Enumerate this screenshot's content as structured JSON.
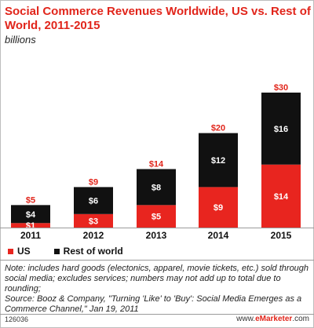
{
  "colors": {
    "us": "#e8251f",
    "row": "#111111",
    "total": "#e1251b",
    "accent": "#e1251b"
  },
  "header": {
    "title": "Social Commerce Revenues Worldwide, US vs. Rest of World, 2011-2015",
    "subtitle": "billions"
  },
  "legend": {
    "us": "US",
    "row": "Rest of world"
  },
  "notes": {
    "note": "Note: includes hard goods (electonics, apparel, movie tickets, etc.) sold through social media; excludes services; numbers may not add up to total due to rounding;",
    "source": "Source: Booz & Company, \"Turning 'Like' to 'Buy': Social Media Emerges as a Commerce Channel,\" Jan 19, 2011"
  },
  "footer": {
    "id": "126036",
    "brand_prefix": "www.",
    "brand_name": "eMarketer",
    "brand_suffix": ".com"
  },
  "chart_data": {
    "type": "bar",
    "stacked": true,
    "categories": [
      "2011",
      "2012",
      "2013",
      "2014",
      "2015"
    ],
    "series": [
      {
        "name": "US",
        "values": [
          1,
          3,
          5,
          9,
          14
        ],
        "labels": [
          "$1",
          "$3",
          "$5",
          "$9",
          "$14"
        ]
      },
      {
        "name": "Rest of world",
        "values": [
          4,
          6,
          8,
          12,
          16
        ],
        "labels": [
          "$4",
          "$6",
          "$8",
          "$12",
          "$16"
        ]
      }
    ],
    "totals": [
      5,
      9,
      14,
      20,
      30
    ],
    "total_labels": [
      "$5",
      "$9",
      "$14",
      "$20",
      "$30"
    ],
    "title": "Social Commerce Revenues Worldwide, US vs. Rest of World, 2011-2015",
    "ylabel": "billions",
    "ylim": [
      0,
      30
    ],
    "legend_position": "bottom-left",
    "grid": false
  }
}
